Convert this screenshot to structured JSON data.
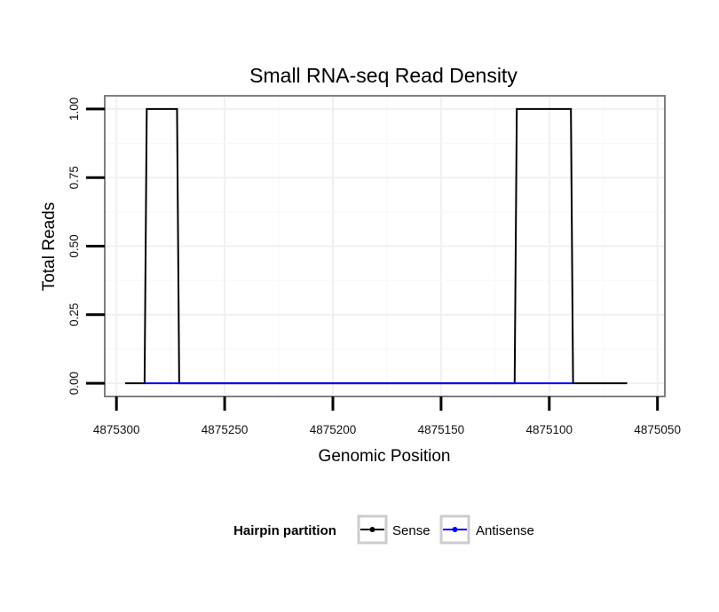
{
  "chart_data": {
    "type": "line",
    "title": "Small RNA-seq Read Density",
    "xlabel": "Genomic Position",
    "ylabel": "Total Reads",
    "x_reversed": true,
    "xlim": [
      4875305,
      4875047
    ],
    "ylim": [
      -0.045,
      1.045
    ],
    "x_ticks": [
      4875300,
      4875250,
      4875200,
      4875150,
      4875100,
      4875050
    ],
    "x_tick_labels": [
      "4875300",
      "4875250",
      "4875200",
      "4875150",
      "4875100",
      "4875050"
    ],
    "y_ticks": [
      0.0,
      0.25,
      0.5,
      0.75,
      1.0
    ],
    "y_tick_labels": [
      "0.00",
      "0.25",
      "0.50",
      "0.75",
      "1.00"
    ],
    "grid": true,
    "legend": {
      "title": "Hairpin partition",
      "position": "bottom",
      "entries": [
        {
          "name": "Sense",
          "color": "#000000"
        },
        {
          "name": "Antisense",
          "color": "#0000ff"
        }
      ]
    },
    "series": [
      {
        "name": "Sense",
        "color": "#000000",
        "x": [
          4875296,
          4875287,
          4875286,
          4875272,
          4875271,
          4875116,
          4875115,
          4875090,
          4875089,
          4875064
        ],
        "values": [
          0,
          0,
          1,
          1,
          0,
          0,
          1,
          1,
          0,
          0
        ]
      },
      {
        "name": "Antisense",
        "color": "#0000ff",
        "x": [
          4875287,
          4875271,
          4875116,
          4875089
        ],
        "values": [
          0,
          0,
          0,
          0
        ]
      }
    ]
  }
}
